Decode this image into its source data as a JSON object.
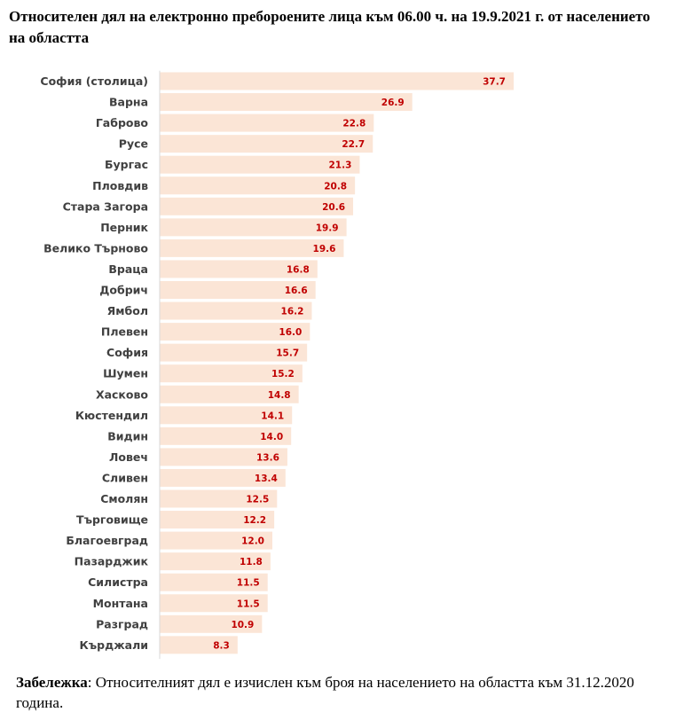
{
  "title": "Относителен дял на електронно пребороените лица към 06.00 ч. на 19.9.2021 г. от населението на областта",
  "note": {
    "label": "Забележка",
    "text": ": Относителният дял е изчислен към броя на населението  на областта към 31.12.2020  година."
  },
  "colors": {
    "bar": "#fbe5d6",
    "value_label": "#c00000",
    "category_label": "#404040",
    "axis": "#d9d9d9"
  },
  "chart_data": {
    "type": "bar",
    "orientation": "horizontal",
    "categories": [
      "София (столица)",
      "Варна",
      "Габрово",
      "Русе",
      "Бургас",
      "Пловдив",
      "Стара Загора",
      "Перник",
      "Велико Търново",
      "Враца",
      "Добрич",
      "Ямбол",
      "Плевен",
      "София",
      "Шумен",
      "Хасково",
      "Кюстендил",
      "Видин",
      "Ловеч",
      "Сливен",
      "Смолян",
      "Търговище",
      "Благоевград",
      "Пазарджик",
      "Силистра",
      "Монтана",
      "Разград",
      "Кърджали"
    ],
    "values": [
      37.7,
      26.9,
      22.8,
      22.7,
      21.3,
      20.8,
      20.6,
      19.9,
      19.6,
      16.8,
      16.6,
      16.2,
      16.0,
      15.7,
      15.2,
      14.8,
      14.1,
      14.0,
      13.6,
      13.4,
      12.5,
      12.2,
      12.0,
      11.8,
      11.5,
      11.5,
      10.9,
      8.3
    ],
    "value_labels": [
      "37.7",
      "26.9",
      "22.8",
      "22.7",
      "21.3",
      "20.8",
      "20.6",
      "19.9",
      "19.6",
      "16.8",
      "16.6",
      "16.2",
      "16.0",
      "15.7",
      "15.2",
      "14.8",
      "14.1",
      "14.0",
      "13.6",
      "13.4",
      "12.5",
      "12.2",
      "12.0",
      "11.8",
      "11.5",
      "11.5",
      "10.9",
      "8.3"
    ],
    "xlim": [
      0,
      37.7
    ],
    "grid": false,
    "legend": "none"
  }
}
